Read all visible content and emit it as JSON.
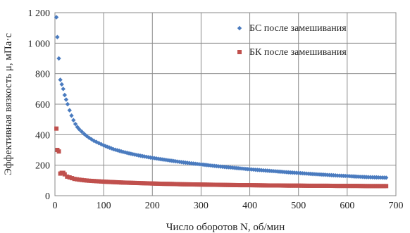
{
  "chart_data": {
    "type": "scatter",
    "xlabel": "Число оборотов N, об/мин",
    "ylabel": "Эффективная вязкость μ, мПа·с",
    "xlim": [
      0,
      700
    ],
    "ylim": [
      0,
      1200
    ],
    "x_ticks": [
      "0",
      "100",
      "200",
      "300",
      "400",
      "500",
      "600",
      "700"
    ],
    "y_ticks": [
      "0",
      "200",
      "400",
      "600",
      "800",
      "1 000",
      "1 200"
    ],
    "grid": true,
    "legend_position": "top-right",
    "series": [
      {
        "name": "БС после замешивания",
        "color": "#4a7bbf",
        "marker": "diamond",
        "points": [
          [
            3,
            1170
          ],
          [
            5,
            1040
          ],
          [
            8,
            900
          ],
          [
            11,
            760
          ],
          [
            14,
            730
          ],
          [
            17,
            700
          ],
          [
            20,
            660
          ],
          [
            23,
            630
          ],
          [
            26,
            600
          ],
          [
            30,
            560
          ],
          [
            34,
            525
          ],
          [
            38,
            495
          ],
          [
            42,
            470
          ],
          [
            46,
            450
          ],
          [
            50,
            435
          ],
          [
            55,
            420
          ],
          [
            60,
            405
          ],
          [
            65,
            392
          ],
          [
            70,
            380
          ],
          [
            80,
            360
          ],
          [
            90,
            345
          ],
          [
            100,
            330
          ],
          [
            120,
            305
          ],
          [
            140,
            287
          ],
          [
            160,
            272
          ],
          [
            180,
            259
          ],
          [
            200,
            248
          ],
          [
            220,
            238
          ],
          [
            240,
            229
          ],
          [
            260,
            220
          ],
          [
            280,
            212
          ],
          [
            300,
            205
          ],
          [
            320,
            198
          ],
          [
            340,
            191
          ],
          [
            360,
            185
          ],
          [
            380,
            179
          ],
          [
            400,
            173
          ],
          [
            420,
            168
          ],
          [
            440,
            163
          ],
          [
            460,
            158
          ],
          [
            480,
            153
          ],
          [
            500,
            149
          ],
          [
            520,
            144
          ],
          [
            540,
            140
          ],
          [
            560,
            136
          ],
          [
            580,
            132
          ],
          [
            600,
            129
          ],
          [
            620,
            125
          ],
          [
            640,
            122
          ],
          [
            660,
            120
          ],
          [
            680,
            118
          ]
        ]
      },
      {
        "name": "БК после замешивания",
        "color": "#c0504d",
        "marker": "square",
        "points": [
          [
            3,
            440
          ],
          [
            5,
            300
          ],
          [
            8,
            290
          ],
          [
            11,
            145
          ],
          [
            14,
            150
          ],
          [
            17,
            150
          ],
          [
            20,
            140
          ],
          [
            25,
            125
          ],
          [
            30,
            120
          ],
          [
            35,
            115
          ],
          [
            40,
            110
          ],
          [
            50,
            105
          ],
          [
            60,
            101
          ],
          [
            70,
            98
          ],
          [
            80,
            96
          ],
          [
            90,
            94
          ],
          [
            100,
            92
          ],
          [
            120,
            89
          ],
          [
            140,
            86
          ],
          [
            160,
            84
          ],
          [
            180,
            82
          ],
          [
            200,
            80
          ],
          [
            220,
            78
          ],
          [
            240,
            77
          ],
          [
            260,
            75
          ],
          [
            280,
            74
          ],
          [
            300,
            73
          ],
          [
            320,
            72
          ],
          [
            340,
            71
          ],
          [
            360,
            70
          ],
          [
            380,
            69
          ],
          [
            400,
            69
          ],
          [
            420,
            68
          ],
          [
            440,
            67
          ],
          [
            460,
            67
          ],
          [
            480,
            66
          ],
          [
            500,
            66
          ],
          [
            520,
            65
          ],
          [
            540,
            65
          ],
          [
            560,
            65
          ],
          [
            580,
            64
          ],
          [
            600,
            64
          ],
          [
            620,
            64
          ],
          [
            640,
            63
          ],
          [
            660,
            63
          ],
          [
            680,
            63
          ]
        ]
      }
    ]
  }
}
